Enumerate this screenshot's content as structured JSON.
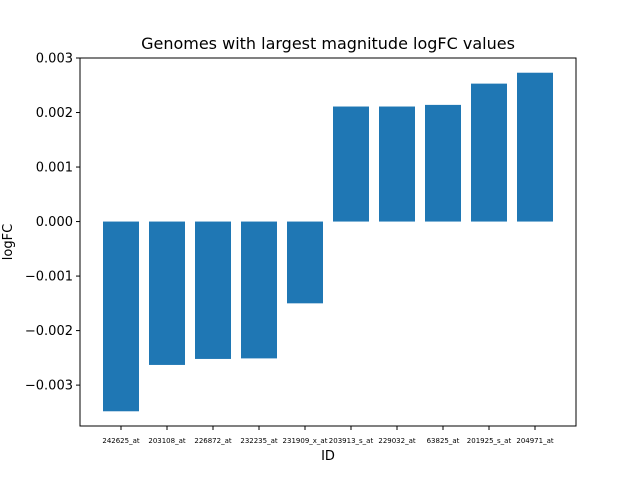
{
  "chart_data": {
    "type": "bar",
    "title": "Genomes with largest magnitude logFC values",
    "xlabel": "ID",
    "ylabel": "logFC",
    "categories": [
      "242625_at",
      "203108_at",
      "226872_at",
      "232235_at",
      "231909_x_at",
      "203913_s_at",
      "229032_at",
      "63825_at",
      "201925_s_at",
      "204971_at"
    ],
    "values": [
      -0.00348,
      -0.00263,
      -0.00252,
      -0.00251,
      -0.0015,
      0.00211,
      0.00211,
      0.00214,
      0.00253,
      0.00273
    ],
    "ylim": [
      -0.00375,
      0.003
    ],
    "yticks": [
      -0.003,
      -0.002,
      -0.001,
      0.0,
      0.001,
      0.002,
      0.003
    ],
    "ytick_labels": [
      "−0.003",
      "−0.002",
      "−0.001",
      "0.000",
      "0.001",
      "0.002",
      "0.003"
    ],
    "grid": false,
    "bar_color": "#1f77b4"
  }
}
